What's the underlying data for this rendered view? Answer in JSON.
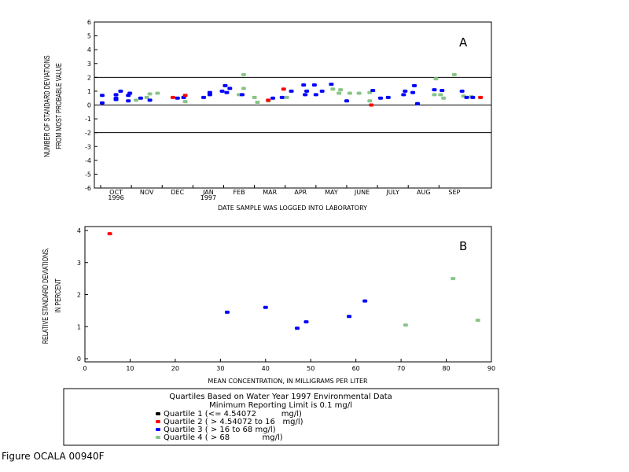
{
  "chart_data": [
    {
      "id": "A",
      "type": "scatter",
      "panel_label": "A",
      "ylabel": [
        "NUMBER OF STANDARD DEVIATIONS",
        "FROM MOST PROBABLE VALUE"
      ],
      "xlabel": "DATE SAMPLE WAS LOGGED INTO LABORATORY",
      "ylim": [
        -6,
        6
      ],
      "yticks": [
        "6",
        "5",
        "4",
        "3",
        "2",
        "1",
        "0",
        "-1",
        "-2",
        "-3",
        "-4",
        "-5",
        "-6"
      ],
      "xlim": [
        0,
        12.5
      ],
      "month_ticks": [
        {
          "label": "OCT",
          "sub": "1996",
          "x": 0.5
        },
        {
          "label": "NOV",
          "x": 1.5
        },
        {
          "label": "DEC",
          "x": 2.5
        },
        {
          "label": "JAN",
          "sub": "1997",
          "x": 3.5
        },
        {
          "label": "FEB",
          "x": 4.5
        },
        {
          "label": "MAR",
          "x": 5.5
        },
        {
          "label": "APR",
          "x": 6.5
        },
        {
          "label": "MAY",
          "x": 7.5
        },
        {
          "label": "JUNE",
          "x": 8.5
        },
        {
          "label": "JULY",
          "x": 9.5
        },
        {
          "label": "AUG",
          "x": 10.5
        },
        {
          "label": "SEP",
          "x": 11.5
        }
      ],
      "reference_lines": [
        2,
        0,
        -2
      ],
      "points": [
        {
          "x": 0.05,
          "y": 0.7,
          "q": 3
        },
        {
          "x": 0.05,
          "y": 0.15,
          "q": 3
        },
        {
          "x": 0.5,
          "y": 0.5,
          "q": 3
        },
        {
          "x": 0.5,
          "y": 0.75,
          "q": 3
        },
        {
          "x": 0.5,
          "y": 0.4,
          "q": 3
        },
        {
          "x": 0.65,
          "y": 1.0,
          "q": 3
        },
        {
          "x": 0.9,
          "y": 0.7,
          "q": 3
        },
        {
          "x": 0.9,
          "y": 0.3,
          "q": 3
        },
        {
          "x": 0.95,
          "y": 0.85,
          "q": 3
        },
        {
          "x": 1.15,
          "y": 0.35,
          "q": 4
        },
        {
          "x": 1.3,
          "y": 0.5,
          "q": 3
        },
        {
          "x": 1.5,
          "y": 0.55,
          "q": 4
        },
        {
          "x": 1.6,
          "y": 0.35,
          "q": 3
        },
        {
          "x": 1.6,
          "y": 0.8,
          "q": 4
        },
        {
          "x": 1.85,
          "y": 0.85,
          "q": 4
        },
        {
          "x": 2.35,
          "y": 0.55,
          "q": 2
        },
        {
          "x": 2.5,
          "y": 0.5,
          "q": 3
        },
        {
          "x": 2.7,
          "y": 0.55,
          "q": 3
        },
        {
          "x": 2.75,
          "y": 0.7,
          "q": 2
        },
        {
          "x": 2.75,
          "y": 0.25,
          "q": 4
        },
        {
          "x": 3.35,
          "y": 0.55,
          "q": 3
        },
        {
          "x": 3.55,
          "y": 0.75,
          "q": 3
        },
        {
          "x": 3.55,
          "y": 0.9,
          "q": 3
        },
        {
          "x": 3.95,
          "y": 1.0,
          "q": 3
        },
        {
          "x": 4.05,
          "y": 1.4,
          "q": 3
        },
        {
          "x": 4.1,
          "y": 0.9,
          "q": 3
        },
        {
          "x": 4.2,
          "y": 1.2,
          "q": 3
        },
        {
          "x": 4.5,
          "y": 0.75,
          "q": 4
        },
        {
          "x": 4.6,
          "y": 0.75,
          "q": 3
        },
        {
          "x": 4.65,
          "y": 1.2,
          "q": 4
        },
        {
          "x": 4.65,
          "y": 2.2,
          "q": 4
        },
        {
          "x": 5.0,
          "y": 0.55,
          "q": 4
        },
        {
          "x": 5.1,
          "y": 0.2,
          "q": 4
        },
        {
          "x": 5.45,
          "y": 0.3,
          "q": 4
        },
        {
          "x": 5.45,
          "y": 0.35,
          "q": 2
        },
        {
          "x": 5.6,
          "y": 0.5,
          "q": 3
        },
        {
          "x": 5.9,
          "y": 0.55,
          "q": 3
        },
        {
          "x": 5.95,
          "y": 1.15,
          "q": 2
        },
        {
          "x": 6.05,
          "y": 0.55,
          "q": 4
        },
        {
          "x": 6.2,
          "y": 1.0,
          "q": 3
        },
        {
          "x": 6.6,
          "y": 1.45,
          "q": 3
        },
        {
          "x": 6.65,
          "y": 0.75,
          "q": 3
        },
        {
          "x": 6.7,
          "y": 1.0,
          "q": 3
        },
        {
          "x": 6.95,
          "y": 1.45,
          "q": 3
        },
        {
          "x": 7.0,
          "y": 0.75,
          "q": 3
        },
        {
          "x": 7.2,
          "y": 1.0,
          "q": 3
        },
        {
          "x": 7.5,
          "y": 1.5,
          "q": 3
        },
        {
          "x": 7.55,
          "y": 1.15,
          "q": 4
        },
        {
          "x": 7.75,
          "y": 0.85,
          "q": 4
        },
        {
          "x": 7.8,
          "y": 1.1,
          "q": 4
        },
        {
          "x": 8.0,
          "y": 0.3,
          "q": 3
        },
        {
          "x": 8.1,
          "y": 0.85,
          "q": 4
        },
        {
          "x": 8.4,
          "y": 0.85,
          "q": 4
        },
        {
          "x": 8.75,
          "y": 0.9,
          "q": 4
        },
        {
          "x": 8.75,
          "y": 0.3,
          "q": 4
        },
        {
          "x": 8.8,
          "y": 0.0,
          "q": 2
        },
        {
          "x": 8.85,
          "y": 1.05,
          "q": 3
        },
        {
          "x": 9.1,
          "y": 0.5,
          "q": 3
        },
        {
          "x": 9.35,
          "y": 0.55,
          "q": 3
        },
        {
          "x": 9.85,
          "y": 0.75,
          "q": 3
        },
        {
          "x": 9.9,
          "y": 1.0,
          "q": 3
        },
        {
          "x": 10.15,
          "y": 0.9,
          "q": 3
        },
        {
          "x": 10.2,
          "y": 1.4,
          "q": 3
        },
        {
          "x": 10.3,
          "y": 0.1,
          "q": 3
        },
        {
          "x": 10.85,
          "y": 1.1,
          "q": 3
        },
        {
          "x": 10.85,
          "y": 0.75,
          "q": 4
        },
        {
          "x": 10.9,
          "y": 1.9,
          "q": 4
        },
        {
          "x": 11.05,
          "y": 0.75,
          "q": 4
        },
        {
          "x": 11.1,
          "y": 1.05,
          "q": 3
        },
        {
          "x": 11.15,
          "y": 0.5,
          "q": 4
        },
        {
          "x": 11.5,
          "y": 2.2,
          "q": 4
        },
        {
          "x": 11.75,
          "y": 1.0,
          "q": 3
        },
        {
          "x": 11.8,
          "y": 0.65,
          "q": 4
        },
        {
          "x": 11.9,
          "y": 0.55,
          "q": 3
        },
        {
          "x": 12.05,
          "y": 0.6,
          "q": 4
        },
        {
          "x": 12.1,
          "y": 0.55,
          "q": 3
        },
        {
          "x": 12.35,
          "y": 0.55,
          "q": 2
        }
      ]
    },
    {
      "id": "B",
      "type": "scatter",
      "panel_label": "B",
      "ylabel": [
        "RELATIVE STANDARD DEVIATIONS,",
        "IN PERCENT"
      ],
      "xlabel": "MEAN CONCENTRATION, IN MILLIGRAMS PER LITER",
      "xlim": [
        0,
        90
      ],
      "ylim": [
        0,
        4
      ],
      "xticks": [
        "0",
        "10",
        "20",
        "30",
        "40",
        "50",
        "60",
        "70",
        "80",
        "90"
      ],
      "yticks": [
        "0",
        "1",
        "2",
        "3",
        "4"
      ],
      "points": [
        {
          "x": 5.5,
          "y": 3.9,
          "q": 2
        },
        {
          "x": 31.5,
          "y": 1.45,
          "q": 3
        },
        {
          "x": 40.0,
          "y": 1.6,
          "q": 3
        },
        {
          "x": 47.0,
          "y": 0.95,
          "q": 3
        },
        {
          "x": 49.0,
          "y": 1.15,
          "q": 3
        },
        {
          "x": 58.5,
          "y": 1.32,
          "q": 3
        },
        {
          "x": 62.0,
          "y": 1.8,
          "q": 3
        },
        {
          "x": 71.0,
          "y": 1.05,
          "q": 4
        },
        {
          "x": 81.5,
          "y": 2.5,
          "q": 4
        },
        {
          "x": 87.0,
          "y": 1.2,
          "q": 4
        }
      ]
    }
  ],
  "legend": {
    "title": "Quartiles Based on Water Year 1997 Environmental Data",
    "subtitle": "Minimum Reporting Limit is 0.1 mg/l",
    "entries": [
      {
        "q": 1,
        "label": "Quartile 1 (<= 4.54072          mg/l)",
        "color": "#000000"
      },
      {
        "q": 2,
        "label": "Quartile 2 ( > 4.54072 to 16   mg/l)",
        "color": "#ff0000"
      },
      {
        "q": 3,
        "label": "Quartile 3 ( > 16 to 68 mg/l)",
        "color": "#0000ff"
      },
      {
        "q": 4,
        "label": "Quartile 4 ( > 68             mg/l)",
        "color": "#88c488"
      }
    ]
  },
  "figure_caption": "Figure OCALA 00940F"
}
